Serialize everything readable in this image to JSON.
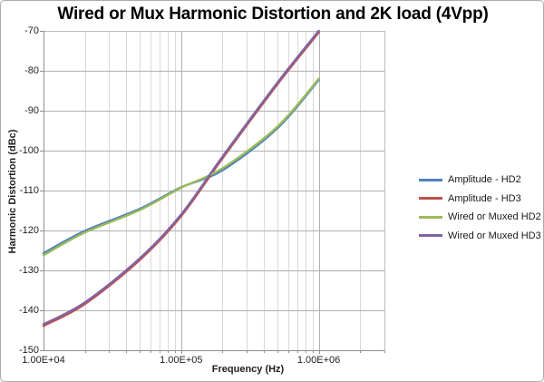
{
  "chart": {
    "title": "Wired or Mux Harmonic Distortion and 2K load (4Vpp)",
    "x_axis": {
      "label": "Frequency (Hz)",
      "scale": "log",
      "min": 10000,
      "max": 3000000,
      "ticks": [
        {
          "label": "1.00E+04",
          "value": 10000
        },
        {
          "label": "1.00E+05",
          "value": 100000
        },
        {
          "label": "1.00E+06",
          "value": 1000000
        }
      ]
    },
    "y_axis": {
      "label": "Harmonic Distortion (dBc)",
      "min": -150,
      "max": -70,
      "step": 10,
      "tick_labels": [
        "-70",
        "-80",
        "-90",
        "-100",
        "-110",
        "-120",
        "-130",
        "-140",
        "-150"
      ]
    },
    "style": {
      "grid_minor": "#d9d9d9",
      "grid_major": "#b0b0b0",
      "plot_border": "#bdbdbd",
      "axis": "#8e8e8e",
      "frame_border": "#ababab",
      "text": "#1f1f1f"
    }
  },
  "chart_data": {
    "type": "line",
    "title": "Wired or Mux Harmonic Distortion and 2K load (4Vpp)",
    "xlabel": "Frequency (Hz)",
    "ylabel": "Harmonic Distortion (dBc)",
    "xlim": [
      10000,
      3000000
    ],
    "ylim": [
      -150,
      -70
    ],
    "x_scale": "log",
    "grid": true,
    "legend_position": "right",
    "x": [
      10000,
      20000,
      50000,
      100000,
      200000,
      500000,
      1000000
    ],
    "series": [
      {
        "name": "Amplitude - HD2",
        "color": "#4F81BD",
        "values": [
          -125.7,
          -120.1,
          -114.6,
          -109.2,
          -104.9,
          -94.4,
          -82.3
        ]
      },
      {
        "name": "Amplitude - HD3",
        "color": "#C0504D",
        "values": [
          -143.9,
          -138.4,
          -127.4,
          -116.4,
          -101.9,
          -83.4,
          -70.4
        ]
      },
      {
        "name": "Wired or Muxed HD2",
        "color": "#9BBB59",
        "values": [
          -126.2,
          -120.5,
          -114.9,
          -109.3,
          -104.4,
          -94.0,
          -82.0
        ]
      },
      {
        "name": "Wired or Muxed HD3",
        "color": "#8064A2",
        "values": [
          -143.5,
          -138.0,
          -127.0,
          -116.0,
          -101.5,
          -83.0,
          -70.0
        ]
      }
    ]
  }
}
